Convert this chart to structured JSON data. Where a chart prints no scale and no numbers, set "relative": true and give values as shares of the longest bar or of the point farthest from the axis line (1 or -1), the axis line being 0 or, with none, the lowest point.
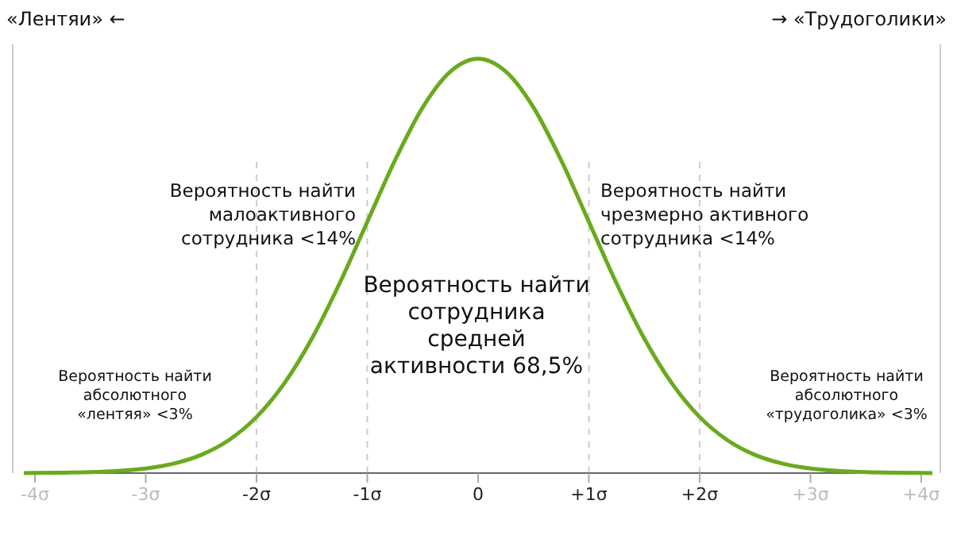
{
  "chart_data": {
    "type": "line",
    "relative": true,
    "x": [
      -4.1,
      -4,
      -3.75,
      -3.5,
      -3.25,
      -3,
      -2.75,
      -2.5,
      -2.25,
      -2,
      -1.75,
      -1.5,
      -1.25,
      -1,
      -0.75,
      -0.5,
      -0.25,
      0,
      0.25,
      0.5,
      0.75,
      1,
      1.25,
      1.5,
      1.75,
      2,
      2.25,
      2.5,
      2.75,
      3,
      3.25,
      3.5,
      3.75,
      4,
      4.1
    ],
    "series": [
      {
        "color": "#6aaa1e",
        "values": [
          0.0002,
          0.0003,
          0.0009,
          0.0022,
          0.0051,
          0.0111,
          0.0228,
          0.0439,
          0.0796,
          0.1353,
          0.2163,
          0.3247,
          0.4578,
          0.6065,
          0.7548,
          0.8825,
          0.969,
          1,
          0.969,
          0.8825,
          0.7548,
          0.6065,
          0.4578,
          0.3247,
          0.2163,
          0.1353,
          0.0796,
          0.0439,
          0.0228,
          0.0111,
          0.0051,
          0.0022,
          0.0009,
          0.0003,
          0.0002
        ]
      }
    ],
    "xlim": [
      -4.1,
      4.1
    ],
    "xticks": [
      {
        "value": -4,
        "label": "-4σ"
      },
      {
        "value": -3,
        "label": "-3σ"
      },
      {
        "value": -2,
        "label": "-2σ"
      },
      {
        "value": -1,
        "label": "-1σ"
      },
      0,
      {
        "value": 1,
        "label": "+1σ"
      },
      {
        "value": 2,
        "label": "+2σ"
      },
      {
        "value": 3,
        "label": "+3σ"
      },
      {
        "value": 4,
        "label": "+4σ"
      }
    ],
    "ref_lines": [
      {
        "axis": "x",
        "value": -2,
        "color": "#cccccc",
        "line_style": "dashed"
      },
      {
        "axis": "x",
        "value": -1,
        "color": "#cccccc",
        "line_style": "dashed"
      },
      {
        "axis": "x",
        "value": 1,
        "color": "#cccccc",
        "line_style": "dashed"
      },
      {
        "axis": "x",
        "value": 2,
        "color": "#cccccc",
        "line_style": "dashed"
      }
    ],
    "line_style": "solid",
    "marker": "none",
    "grid": false,
    "annotations": [
      "«Лентяи» ←",
      "→ «Трудоголики»",
      "Вероятность найти\nмалоактивного\nсотрудника <14%",
      "Вероятность найти\nчрезмерно активного\nсотрудника <14%",
      "Вероятность найти\nсотрудника\nсредней\nактивности 68,5%",
      "Вероятность найти\nабсолютного\n«лентяя» <3%",
      "Вероятность найти\nабсолютного\n«трудоголика» <3%"
    ]
  }
}
